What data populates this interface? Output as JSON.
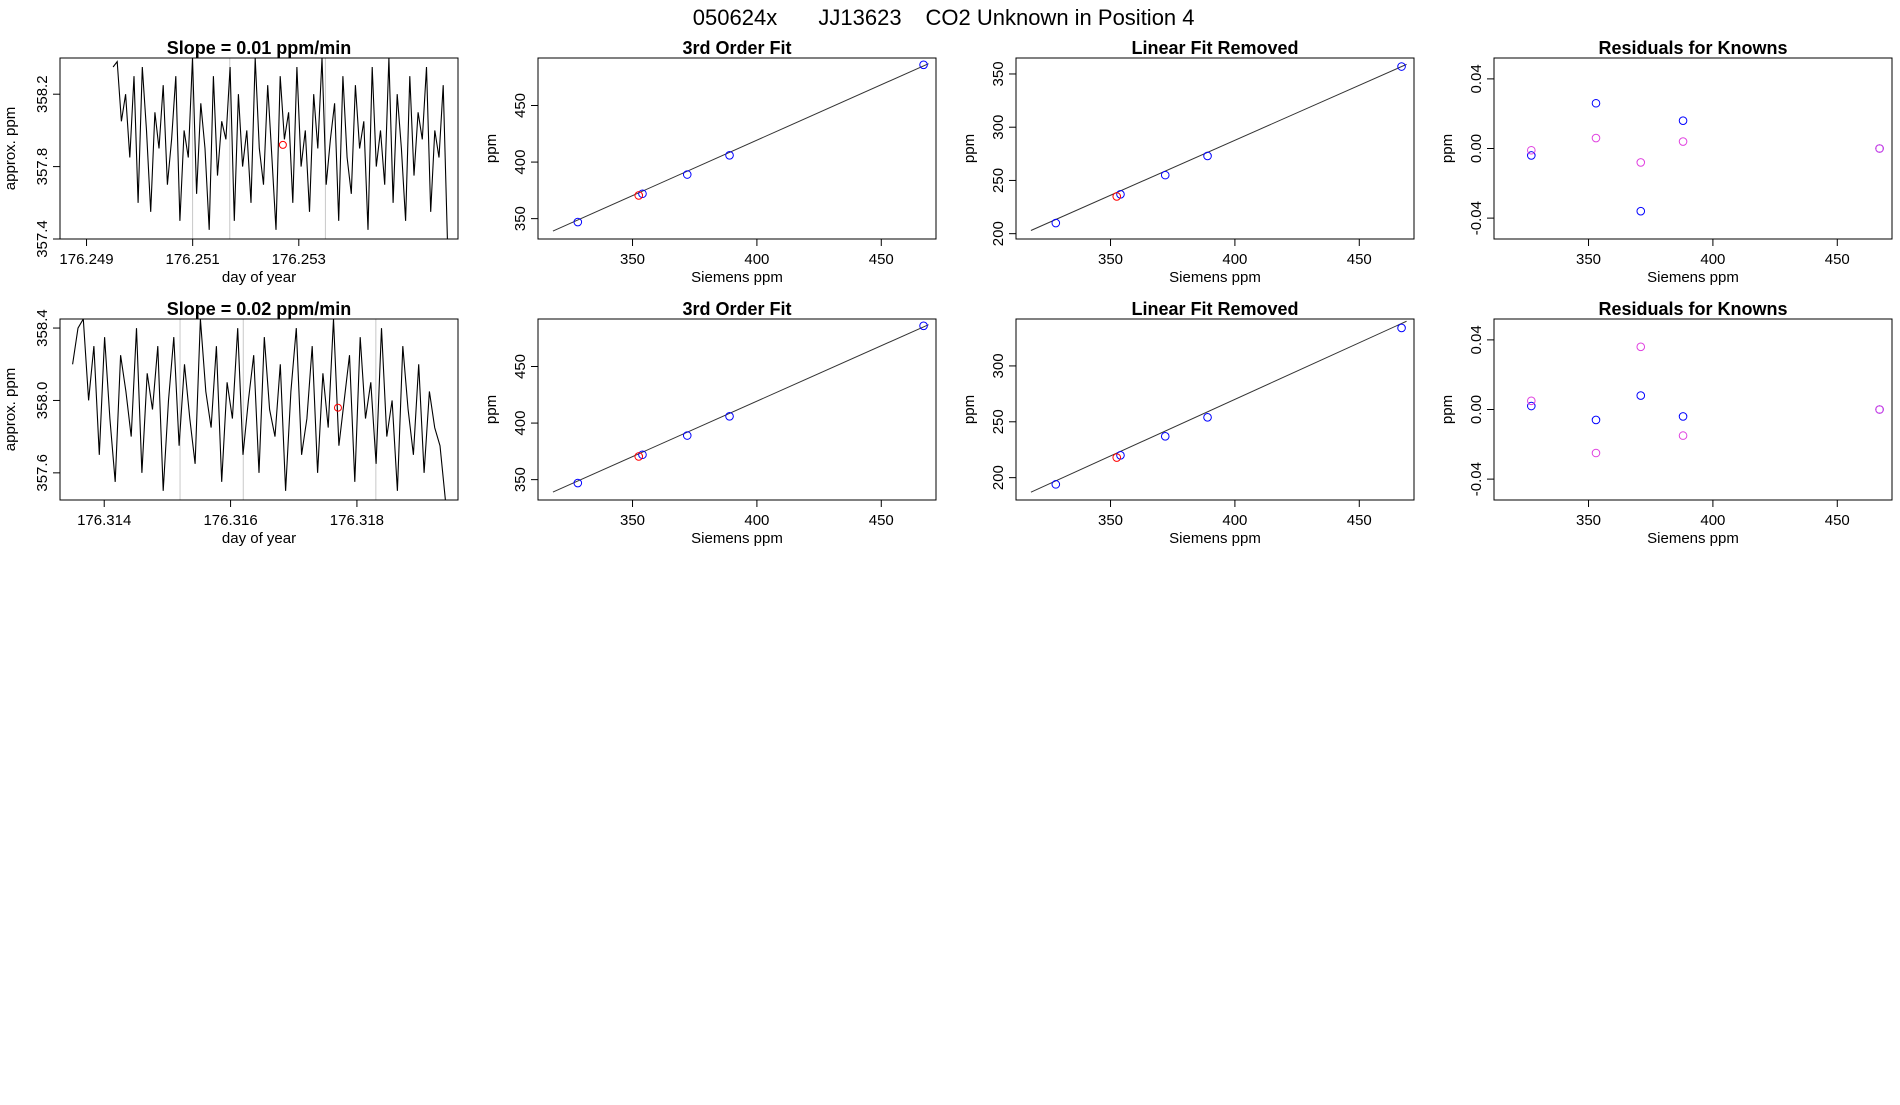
{
  "page_title": {
    "run_id": "050624x",
    "tank_id": "JJ13623",
    "description": "CO2 Unknown in Position  4"
  },
  "colors": {
    "line": "#000000",
    "known_point": "#0000ff",
    "unknown_point": "#ff0000",
    "residual_alt": "#e040e0",
    "fit_line": "#333333"
  },
  "chart_data": [
    {
      "type": "line",
      "panel": "row1-col1",
      "title": "Slope =  0.01  ppm/min",
      "xlabel": "day of year",
      "ylabel": "approx. ppm",
      "xlim": [
        176.2485,
        176.256
      ],
      "ylim": [
        357.4,
        358.4
      ],
      "xticks": [
        176.249,
        176.251,
        176.253
      ],
      "xtick_labels": [
        "176.249",
        "176.251",
        "176.253"
      ],
      "yticks": [
        357.4,
        357.8,
        358.2
      ],
      "ytick_labels": [
        "357.4",
        "357.8",
        "358.2"
      ],
      "series": [
        {
          "name": "trace",
          "x_start": 176.2495,
          "x_end": 176.2558,
          "values": [
            358.35,
            358.38,
            358.05,
            358.2,
            357.85,
            358.3,
            357.6,
            358.35,
            358.0,
            357.55,
            358.1,
            357.9,
            358.25,
            357.7,
            357.95,
            358.3,
            357.5,
            358.0,
            357.85,
            358.4,
            357.65,
            358.15,
            357.9,
            357.45,
            358.3,
            357.75,
            358.05,
            357.95,
            358.35,
            357.5,
            358.2,
            357.8,
            358.0,
            357.6,
            358.4,
            357.9,
            357.7,
            358.25,
            357.85,
            357.45,
            358.3,
            357.95,
            358.1,
            357.6,
            358.35,
            357.8,
            358.0,
            357.55,
            358.2,
            357.9,
            358.4,
            357.7,
            357.95,
            358.15,
            357.5,
            358.3,
            357.85,
            357.65,
            358.25,
            357.9,
            358.05,
            357.45,
            358.35,
            357.8,
            358.0,
            357.7,
            358.4,
            357.6,
            358.2,
            357.9,
            357.5,
            358.3,
            357.75,
            358.1,
            357.95,
            358.35,
            357.55,
            358.0,
            357.85,
            358.25,
            357.4
          ]
        }
      ],
      "unknown_points": [
        {
          "x": 176.2527,
          "y": 357.92
        }
      ],
      "vlines": [
        176.251,
        176.2517,
        176.2535
      ]
    },
    {
      "type": "scatter",
      "panel": "row1-col2",
      "title": "3rd Order Fit",
      "xlabel": "Siemens ppm",
      "ylabel": "ppm",
      "xlim": [
        312,
        472
      ],
      "ylim": [
        332,
        492
      ],
      "xticks": [
        350,
        400,
        450
      ],
      "xtick_labels": [
        "350",
        "400",
        "450"
      ],
      "yticks": [
        350,
        400,
        450
      ],
      "ytick_labels": [
        "350",
        "400",
        "450"
      ],
      "fit_line": [
        [
          318,
          339
        ],
        [
          469,
          487
        ]
      ],
      "known_points": [
        {
          "x": 328,
          "y": 347
        },
        {
          "x": 354,
          "y": 372
        },
        {
          "x": 372,
          "y": 389
        },
        {
          "x": 389,
          "y": 406
        },
        {
          "x": 467,
          "y": 486
        }
      ],
      "unknown_points": [
        {
          "x": 352.5,
          "y": 370.5
        }
      ]
    },
    {
      "type": "scatter",
      "panel": "row1-col3",
      "title": "Linear Fit Removed",
      "xlabel": "Siemens ppm",
      "ylabel": "ppm",
      "xlim": [
        312,
        472
      ],
      "ylim": [
        195,
        365
      ],
      "xticks": [
        350,
        400,
        450
      ],
      "xtick_labels": [
        "350",
        "400",
        "450"
      ],
      "yticks": [
        200,
        250,
        300,
        350
      ],
      "ytick_labels": [
        "200",
        "250",
        "300",
        "350"
      ],
      "fit_line": [
        [
          318,
          203
        ],
        [
          469,
          359
        ]
      ],
      "known_points": [
        {
          "x": 328,
          "y": 210
        },
        {
          "x": 354,
          "y": 237
        },
        {
          "x": 372,
          "y": 255
        },
        {
          "x": 389,
          "y": 273
        },
        {
          "x": 467,
          "y": 357
        }
      ],
      "unknown_points": [
        {
          "x": 352.5,
          "y": 235
        }
      ]
    },
    {
      "type": "scatter",
      "panel": "row1-col4",
      "title": "Residuals for Knowns",
      "xlabel": "Siemens ppm",
      "ylabel": "ppm",
      "xlim": [
        312,
        472
      ],
      "ylim": [
        -0.052,
        0.052
      ],
      "xticks": [
        350,
        400,
        450
      ],
      "xtick_labels": [
        "350",
        "400",
        "450"
      ],
      "yticks": [
        -0.04,
        0.0,
        0.04
      ],
      "ytick_labels": [
        "-0.04",
        "0.00",
        "0.04"
      ],
      "series": [
        {
          "name": "residuals_blue",
          "points": [
            {
              "x": 327,
              "y": -0.004
            },
            {
              "x": 353,
              "y": 0.026
            },
            {
              "x": 371,
              "y": -0.036
            },
            {
              "x": 388,
              "y": 0.016
            },
            {
              "x": 467,
              "y": 0.0
            }
          ]
        },
        {
          "name": "residuals_magenta",
          "points": [
            {
              "x": 327,
              "y": -0.001
            },
            {
              "x": 353,
              "y": 0.006
            },
            {
              "x": 371,
              "y": -0.008
            },
            {
              "x": 388,
              "y": 0.004
            },
            {
              "x": 467,
              "y": 0.0
            }
          ]
        }
      ]
    },
    {
      "type": "line",
      "panel": "row2-col1",
      "title": "Slope =  0.02  ppm/min",
      "xlabel": "day of year",
      "ylabel": "approx. ppm",
      "xlim": [
        176.3133,
        176.3196
      ],
      "ylim": [
        357.45,
        358.45
      ],
      "xticks": [
        176.314,
        176.316,
        176.318
      ],
      "xtick_labels": [
        "176.314",
        "176.316",
        "176.318"
      ],
      "yticks": [
        357.6,
        358.0,
        358.4
      ],
      "ytick_labels": [
        "357.6",
        "358.0",
        "358.4"
      ],
      "series": [
        {
          "name": "trace",
          "x_start": 176.3135,
          "x_end": 176.3194,
          "values": [
            358.2,
            358.4,
            358.45,
            358.0,
            358.3,
            357.7,
            358.35,
            357.9,
            357.55,
            358.25,
            358.05,
            357.8,
            358.4,
            357.6,
            358.15,
            357.95,
            358.3,
            357.5,
            358.0,
            358.35,
            357.75,
            358.2,
            357.9,
            357.65,
            358.45,
            358.05,
            357.85,
            358.3,
            357.55,
            358.1,
            357.9,
            358.4,
            357.7,
            358.0,
            358.25,
            357.6,
            358.35,
            357.95,
            357.8,
            358.2,
            357.5,
            358.05,
            358.4,
            357.7,
            357.9,
            358.3,
            357.6,
            358.15,
            357.85,
            358.45,
            357.75,
            358.0,
            358.25,
            357.55,
            358.35,
            357.9,
            358.1,
            357.65,
            358.4,
            357.8,
            358.0,
            357.5,
            358.3,
            357.95,
            357.7,
            358.2,
            357.6,
            358.05,
            357.85,
            357.75,
            357.45
          ]
        }
      ],
      "unknown_points": [
        {
          "x": 176.3177,
          "y": 357.96
        }
      ],
      "vlines": [
        176.3152,
        176.3162,
        176.3183
      ]
    },
    {
      "type": "scatter",
      "panel": "row2-col2",
      "title": "3rd Order Fit",
      "xlabel": "Siemens ppm",
      "ylabel": "ppm",
      "xlim": [
        312,
        472
      ],
      "ylim": [
        332,
        492
      ],
      "xticks": [
        350,
        400,
        450
      ],
      "xtick_labels": [
        "350",
        "400",
        "450"
      ],
      "yticks": [
        350,
        400,
        450
      ],
      "ytick_labels": [
        "350",
        "400",
        "450"
      ],
      "fit_line": [
        [
          318,
          339
        ],
        [
          469,
          487
        ]
      ],
      "known_points": [
        {
          "x": 328,
          "y": 347
        },
        {
          "x": 354,
          "y": 372
        },
        {
          "x": 372,
          "y": 389
        },
        {
          "x": 389,
          "y": 406
        },
        {
          "x": 467,
          "y": 486
        }
      ],
      "unknown_points": [
        {
          "x": 352.5,
          "y": 370.5
        }
      ]
    },
    {
      "type": "scatter",
      "panel": "row2-col3",
      "title": "Linear Fit Removed",
      "xlabel": "Siemens ppm",
      "ylabel": "ppm",
      "xlim": [
        312,
        472
      ],
      "ylim": [
        180,
        342
      ],
      "xticks": [
        350,
        400,
        450
      ],
      "xtick_labels": [
        "350",
        "400",
        "450"
      ],
      "yticks": [
        200,
        250,
        300
      ],
      "ytick_labels": [
        "200",
        "250",
        "300"
      ],
      "fit_line": [
        [
          318,
          187
        ],
        [
          469,
          340
        ]
      ],
      "known_points": [
        {
          "x": 328,
          "y": 194
        },
        {
          "x": 354,
          "y": 220
        },
        {
          "x": 372,
          "y": 237
        },
        {
          "x": 389,
          "y": 254
        },
        {
          "x": 467,
          "y": 334
        }
      ],
      "unknown_points": [
        {
          "x": 352.5,
          "y": 218
        }
      ]
    },
    {
      "type": "scatter",
      "panel": "row2-col4",
      "title": "Residuals for Knowns",
      "xlabel": "Siemens ppm",
      "ylabel": "ppm",
      "xlim": [
        312,
        472
      ],
      "ylim": [
        -0.052,
        0.052
      ],
      "xticks": [
        350,
        400,
        450
      ],
      "xtick_labels": [
        "350",
        "400",
        "450"
      ],
      "yticks": [
        -0.04,
        0.0,
        0.04
      ],
      "ytick_labels": [
        "-0.04",
        "0.00",
        "0.04"
      ],
      "series": [
        {
          "name": "residuals_blue",
          "points": [
            {
              "x": 327,
              "y": 0.002
            },
            {
              "x": 353,
              "y": -0.006
            },
            {
              "x": 371,
              "y": 0.008
            },
            {
              "x": 388,
              "y": -0.004
            },
            {
              "x": 467,
              "y": 0.0
            }
          ]
        },
        {
          "name": "residuals_magenta",
          "points": [
            {
              "x": 327,
              "y": 0.005
            },
            {
              "x": 353,
              "y": -0.025
            },
            {
              "x": 371,
              "y": 0.036
            },
            {
              "x": 388,
              "y": -0.015
            },
            {
              "x": 467,
              "y": 0.0
            }
          ]
        }
      ]
    }
  ]
}
